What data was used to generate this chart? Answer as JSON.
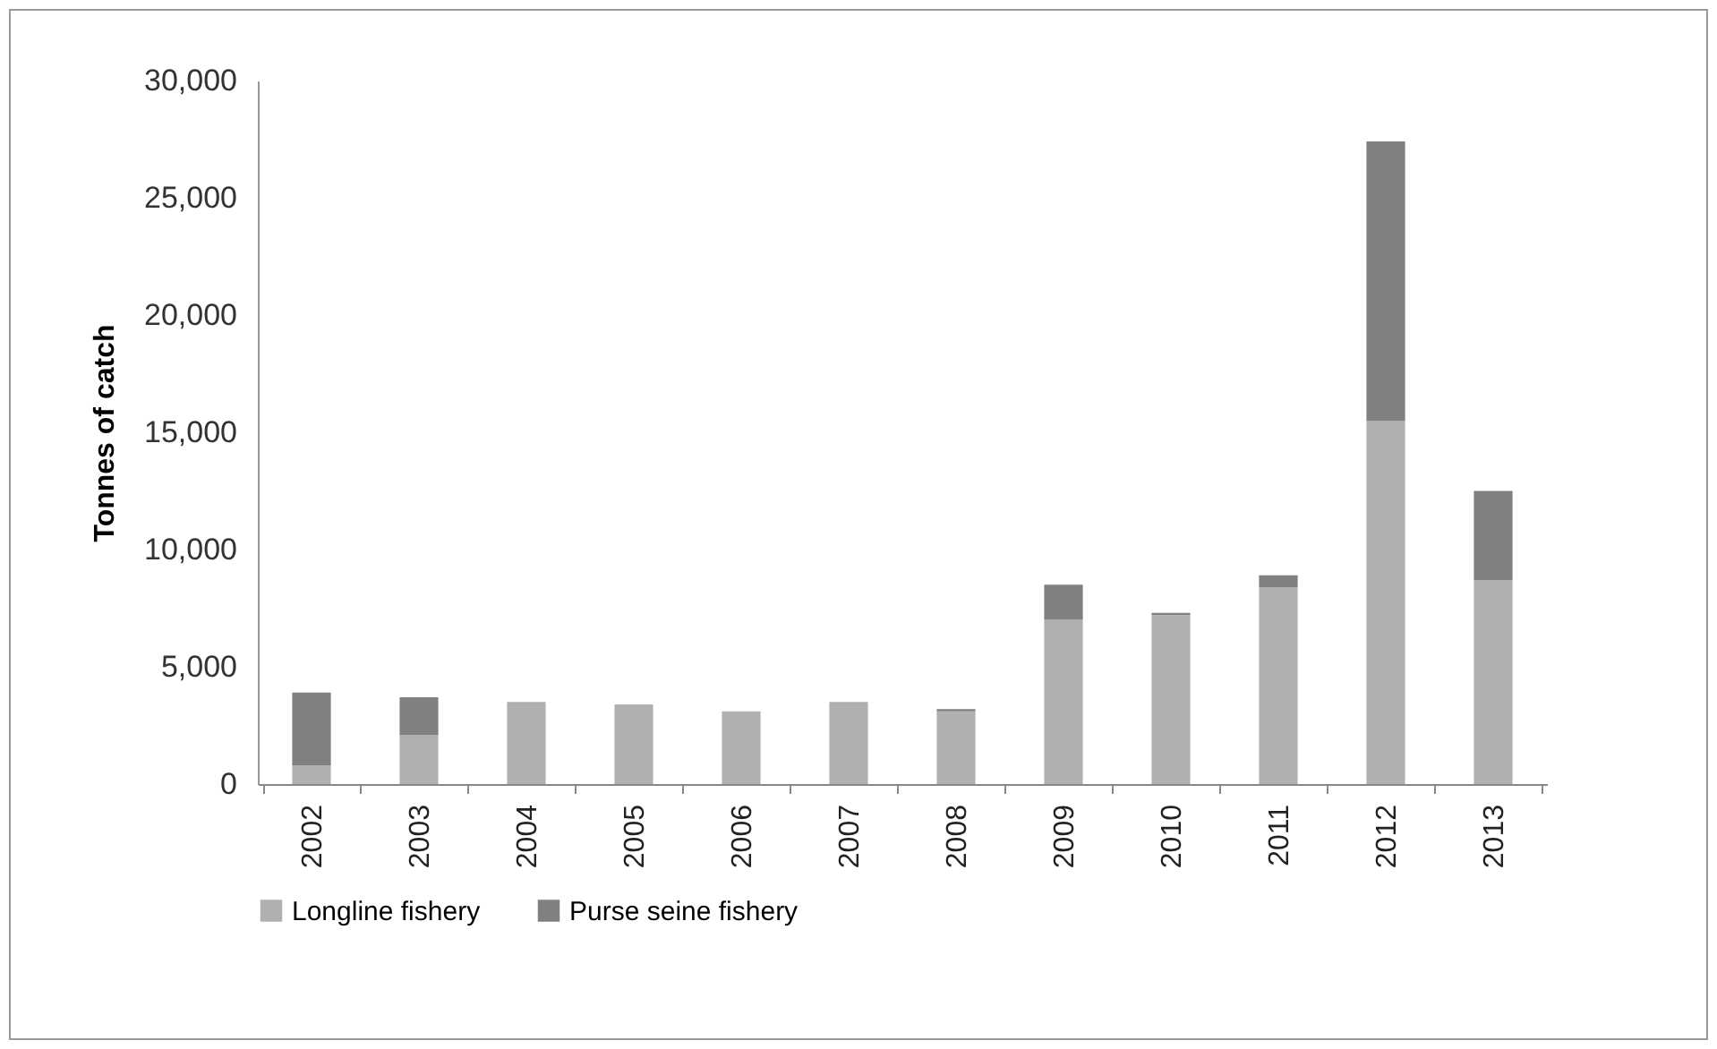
{
  "chart_data": {
    "type": "bar",
    "stacked": true,
    "ylabel": "Tonnes of catch",
    "categories": [
      "2002",
      "2003",
      "2004",
      "2005",
      "2006",
      "2007",
      "2008",
      "2009",
      "2010",
      "2011",
      "2012",
      "2013"
    ],
    "series": [
      {
        "name": "Longline fishery",
        "color": "#b0b0b0",
        "values": [
          800,
          2100,
          3500,
          3400,
          3100,
          3500,
          3100,
          7000,
          7200,
          8400,
          15500,
          8700
        ]
      },
      {
        "name": "Purse seine fishery",
        "color": "#808080",
        "values": [
          3100,
          1600,
          0,
          0,
          0,
          0,
          100,
          1500,
          100,
          500,
          11900,
          3800
        ]
      }
    ],
    "ylim": [
      0,
      30000
    ],
    "yticks": [
      0,
      {
        "value": 5000,
        "label": "5,000"
      },
      {
        "value": 10000,
        "label": "10,000"
      },
      {
        "value": 15000,
        "label": "15,000"
      },
      {
        "value": 20000,
        "label": "20,000"
      },
      {
        "value": 25000,
        "label": "25,000"
      },
      {
        "value": 30000,
        "label": "30,000"
      }
    ],
    "grid": false,
    "legend": "bottom"
  }
}
